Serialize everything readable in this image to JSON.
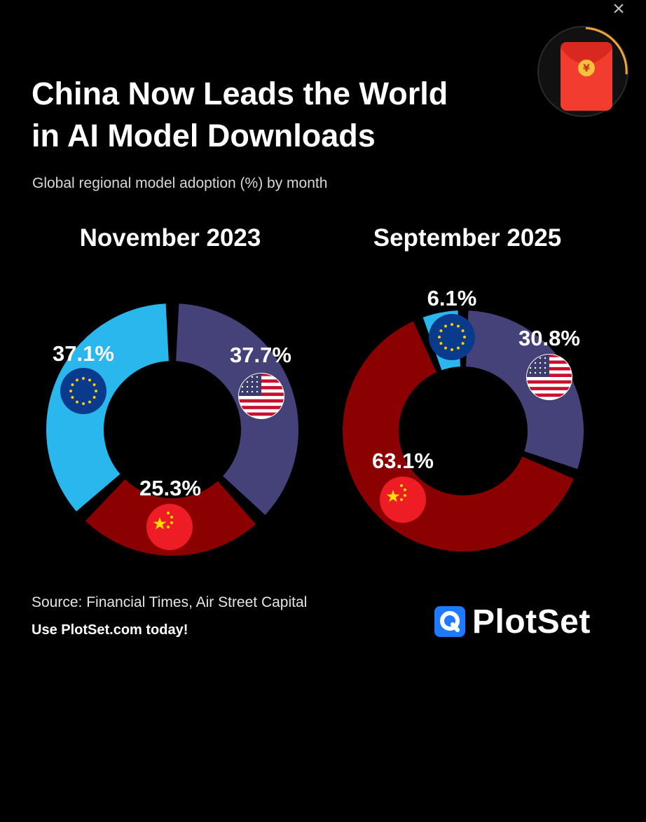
{
  "header": {
    "title_line1": "China Now Leads the World",
    "title_line2": "in AI Model Downloads",
    "subtitle": "Global regional model adoption (%) by month"
  },
  "overlay": {
    "close_glyph": "×",
    "red_packet_icon": "red-packet-icon"
  },
  "chart_data": [
    {
      "type": "pie",
      "style": "donut",
      "title": "November 2023",
      "slices": [
        {
          "label": "US",
          "value": 37.7,
          "display": "37.7%",
          "color": "#45427a",
          "icon": "us-flag-icon"
        },
        {
          "label": "China",
          "value": 25.3,
          "display": "25.3%",
          "color": "#8b0000",
          "icon": "china-flag-icon"
        },
        {
          "label": "EU",
          "value": 37.1,
          "display": "37.1%",
          "color": "#29b7ee",
          "icon": "eu-flag-icon"
        }
      ]
    },
    {
      "type": "pie",
      "style": "donut",
      "title": "September 2025",
      "slices": [
        {
          "label": "US",
          "value": 30.8,
          "display": "30.8%",
          "color": "#45427a",
          "icon": "us-flag-icon"
        },
        {
          "label": "China",
          "value": 63.1,
          "display": "63.1%",
          "color": "#8b0000",
          "icon": "china-flag-icon"
        },
        {
          "label": "EU",
          "value": 6.1,
          "display": "6.1%",
          "color": "#29b7ee",
          "icon": "eu-flag-icon"
        }
      ]
    }
  ],
  "footer": {
    "source": "Source: Financial Times, Air Street Capital",
    "promo": "Use PlotSet.com today!",
    "brand_name": "PlotSet",
    "brand_color": "#1e7bff"
  }
}
